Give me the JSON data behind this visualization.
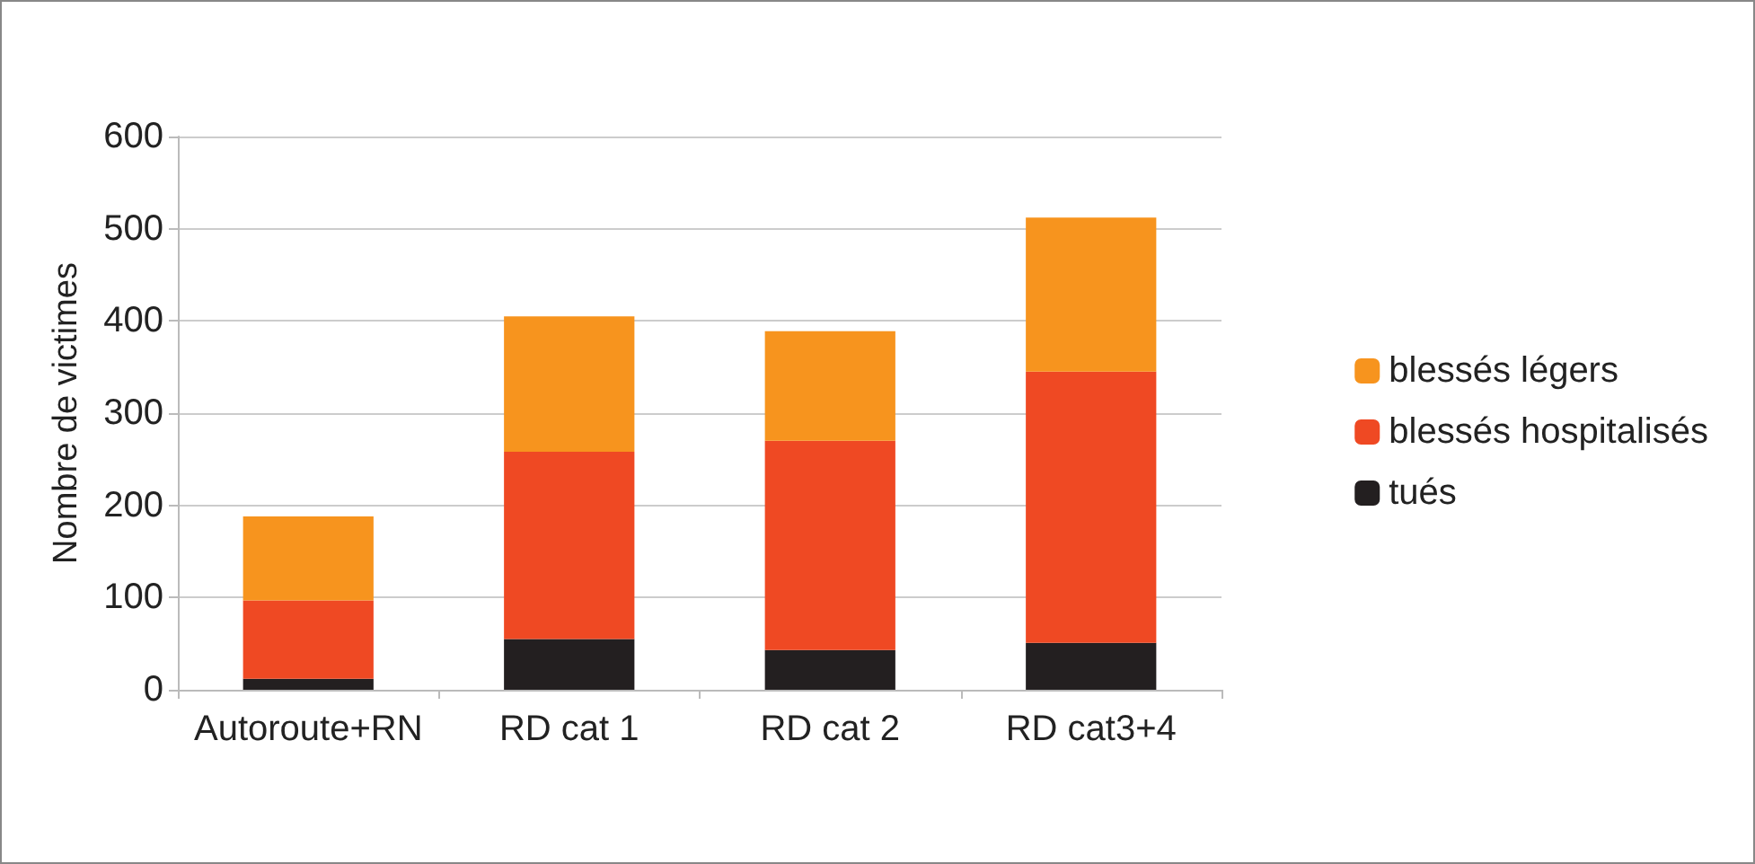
{
  "chart_data": {
    "type": "bar",
    "stacked": true,
    "ylabel": "Nombre de victimes",
    "categories": [
      "Autoroute+RN",
      "RD cat 1",
      "RD cat 2",
      "RD cat3+4"
    ],
    "series": [
      {
        "name": "tués",
        "color": "#231f20",
        "values": [
          12,
          55,
          43,
          51
        ]
      },
      {
        "name": "blessés hospitalisés",
        "color": "#ef4923",
        "values": [
          85,
          203,
          227,
          294
        ]
      },
      {
        "name": "blessés légers",
        "color": "#f7941e",
        "values": [
          91,
          147,
          119,
          167
        ]
      }
    ],
    "ylim": [
      0,
      600
    ],
    "yticks": [
      0,
      100,
      200,
      300,
      400,
      500,
      600
    ],
    "grid": "y",
    "legend": "right"
  }
}
